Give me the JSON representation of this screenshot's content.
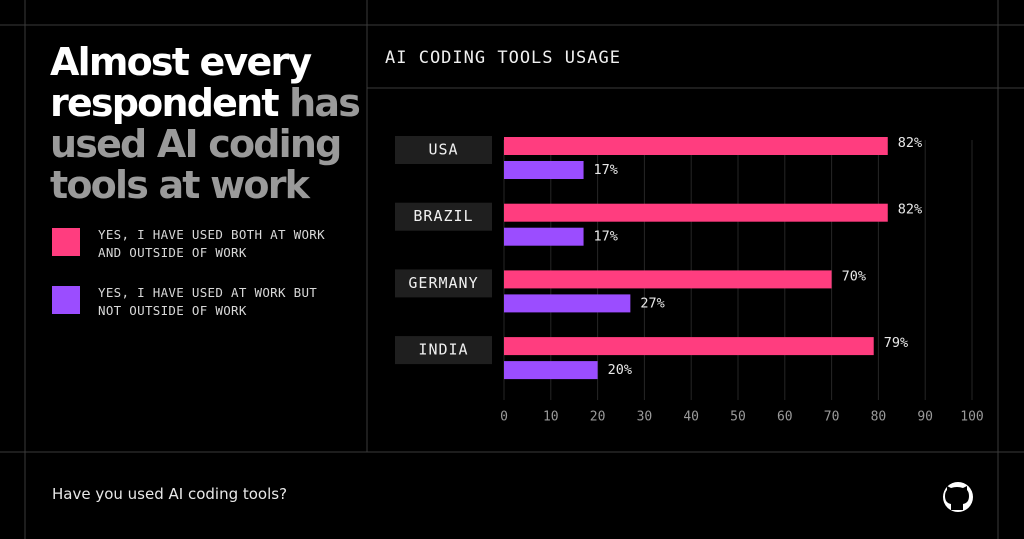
{
  "headline": {
    "lead": "Almost every respondent",
    "rest": "has used AI coding tools at work"
  },
  "question": "Have you used AI coding tools?",
  "chart_data": {
    "type": "bar",
    "orientation": "horizontal",
    "title": "AI CODING TOOLS USAGE",
    "categories": [
      "USA",
      "BRAZIL",
      "GERMANY",
      "INDIA"
    ],
    "series": [
      {
        "name": "YES, I HAVE USED BOTH AT WORK AND OUTSIDE OF WORK",
        "color": "#ff3d7f",
        "values": [
          82,
          82,
          70,
          79
        ],
        "value_labels": [
          "82%",
          "82%",
          "70%",
          "79%"
        ]
      },
      {
        "name": "YES, I HAVE USED AT WORK BUT NOT OUTSIDE OF WORK",
        "color": "#9b4dff",
        "values": [
          17,
          17,
          27,
          20
        ],
        "value_labels": [
          "17%",
          "17%",
          "27%",
          "20%"
        ]
      }
    ],
    "xlim": [
      0,
      100
    ],
    "xticks": [
      0,
      10,
      20,
      30,
      40,
      50,
      60,
      70,
      80,
      90,
      100
    ],
    "grid": true
  }
}
